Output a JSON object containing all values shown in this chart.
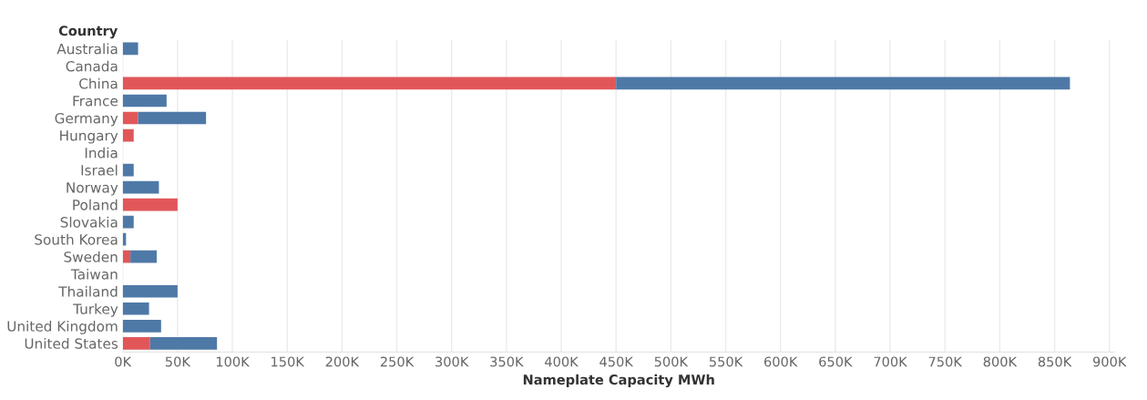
{
  "chart_data": {
    "type": "bar",
    "orientation": "horizontal",
    "stacked": true,
    "xlabel": "Nameplate Capacity MWh",
    "ylabel": "Country",
    "categories": [
      "Australia",
      "Canada",
      "China",
      "France",
      "Germany",
      "Hungary",
      "India",
      "Israel",
      "Norway",
      "Poland",
      "Slovakia",
      "South Korea",
      "Sweden",
      "Taiwan",
      "Thailand",
      "Turkey",
      "United Kingdom",
      "United States"
    ],
    "series": [
      {
        "color": "#e15759",
        "values": [
          null,
          null,
          450000,
          null,
          14000,
          10000,
          null,
          null,
          null,
          50000,
          null,
          null,
          7000,
          null,
          null,
          null,
          null,
          25000
        ]
      },
      {
        "color": "#4e79a7",
        "values": [
          14000,
          null,
          414000,
          40000,
          62000,
          null,
          null,
          10000,
          33000,
          null,
          10000,
          3000,
          24000,
          null,
          50000,
          24000,
          35000,
          61000
        ]
      }
    ],
    "xlim": [
      0,
      905000
    ],
    "xticks": [
      {
        "value": 0,
        "label": "0K"
      },
      {
        "value": 50000,
        "label": "50K"
      },
      {
        "value": 100000,
        "label": "100K"
      },
      {
        "value": 150000,
        "label": "150K"
      },
      {
        "value": 200000,
        "label": "200K"
      },
      {
        "value": 250000,
        "label": "250K"
      },
      {
        "value": 300000,
        "label": "300K"
      },
      {
        "value": 350000,
        "label": "350K"
      },
      {
        "value": 400000,
        "label": "400K"
      },
      {
        "value": 450000,
        "label": "450K"
      },
      {
        "value": 500000,
        "label": "500K"
      },
      {
        "value": 550000,
        "label": "550K"
      },
      {
        "value": 600000,
        "label": "600K"
      },
      {
        "value": 650000,
        "label": "650K"
      },
      {
        "value": 700000,
        "label": "700K"
      },
      {
        "value": 750000,
        "label": "750K"
      },
      {
        "value": 800000,
        "label": "800K"
      },
      {
        "value": 850000,
        "label": "850K"
      },
      {
        "value": 900000,
        "label": "900K"
      }
    ],
    "grid": "x"
  }
}
